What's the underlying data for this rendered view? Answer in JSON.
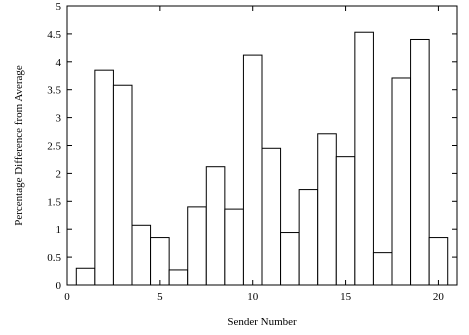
{
  "chart_data": {
    "type": "bar",
    "xlabel": "Sender Number",
    "ylabel": "Percentage Difference from Average",
    "xlim": [
      0,
      21
    ],
    "ylim": [
      0,
      5
    ],
    "x_ticks": [
      0,
      5,
      10,
      15,
      20
    ],
    "y_ticks": [
      0,
      0.5,
      1,
      1.5,
      2,
      2.5,
      3,
      3.5,
      4,
      4.5,
      5
    ],
    "grid": false,
    "bar_color": "#ffffff",
    "edge_color": "#000000",
    "x": [
      1,
      2,
      3,
      4,
      5,
      6,
      7,
      8,
      9,
      10,
      11,
      12,
      13,
      14,
      15,
      16,
      17,
      18,
      19,
      20
    ],
    "values": [
      0.3,
      3.85,
      3.58,
      1.07,
      0.85,
      0.27,
      1.4,
      2.12,
      1.36,
      4.12,
      2.45,
      0.94,
      1.71,
      2.71,
      2.3,
      4.53,
      0.58,
      3.71,
      4.4,
      0.85
    ]
  }
}
